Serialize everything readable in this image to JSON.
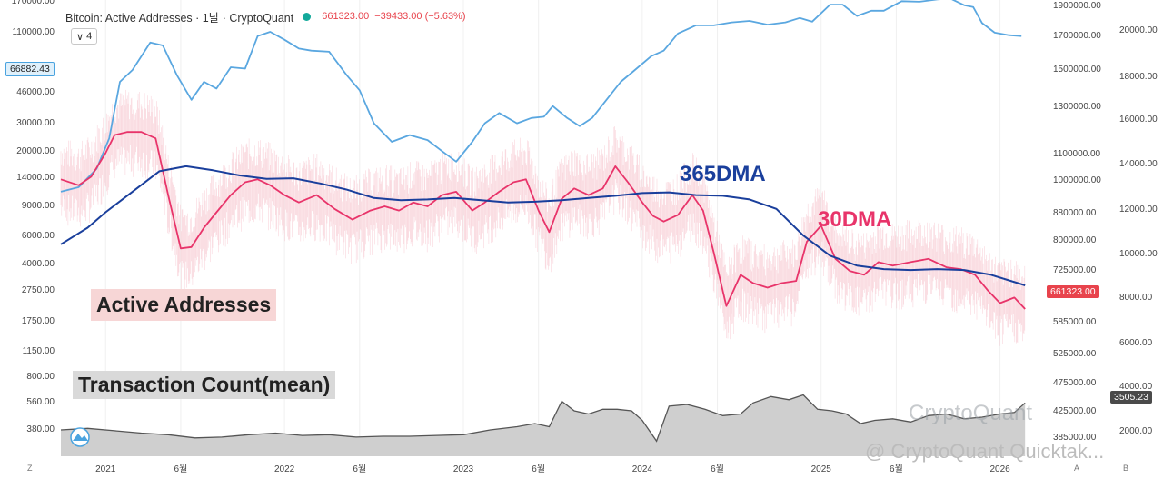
{
  "header": {
    "title": "Bitcoin: Active Addresses · 1날 · CryptoQuant",
    "price": "661323.00",
    "change": "−39433.00 (−5.63%)",
    "indicator_count": "4"
  },
  "badges": {
    "left_axis_current": "66882.43",
    "mid_axis_current": "661323.00",
    "right_axis_current": "3505.23"
  },
  "annotations": {
    "active_addresses": "Active Addresses",
    "transaction_count": "Transaction Count(mean)",
    "ma365": "365DMA",
    "ma30": "30DMA"
  },
  "watermarks": {
    "brand": "CryptoQuant",
    "quicktake": "@ CryptoQuant Quicktak..."
  },
  "corners": {
    "bottom_left": "Z",
    "axis_a": "A",
    "axis_b": "B"
  },
  "chart_data": {
    "type": "line",
    "x_ticks": [
      "2021",
      "6월",
      "2022",
      "6월",
      "2023",
      "6월",
      "2024",
      "6월",
      "2025",
      "6월",
      "2026"
    ],
    "left_axis": {
      "scale": "log",
      "ticks": [
        "170000.00",
        "110000.00",
        "66882.43",
        "46000.00",
        "30000.00",
        "20000.00",
        "14000.00",
        "9000.00",
        "6000.00",
        "4000.00",
        "2750.00",
        "1750.00",
        "1150.00",
        "800.00",
        "560.00",
        "380.00"
      ]
    },
    "mid_axis": {
      "ticks": [
        "1900000.00",
        "1700000.00",
        "1500000.00",
        "1300000.00",
        "1100000.00",
        "1000000.00",
        "880000.00",
        "800000.00",
        "725000.00",
        "661323.00",
        "585000.00",
        "525000.00",
        "475000.00",
        "425000.00",
        "385000.00"
      ]
    },
    "right_axis": {
      "ticks": [
        "20000.00",
        "18000.00",
        "16000.00",
        "14000.00",
        "12000.00",
        "10000.00",
        "8000.00",
        "6000.00",
        "4000.00",
        "2000.00"
      ]
    },
    "series": [
      {
        "name": "",
        "color": "#5aa7e0",
        "axis": "left",
        "x": [
          2020.75,
          2020.85,
          2020.95,
          2021.02,
          2021.08,
          2021.15,
          2021.25,
          2021.32,
          2021.4,
          2021.48,
          2021.55,
          2021.62,
          2021.7,
          2021.78,
          2021.85,
          2021.92,
          2022.0,
          2022.08,
          2022.15,
          2022.25,
          2022.35,
          2022.42,
          2022.5,
          2022.6,
          2022.7,
          2022.8,
          2022.88,
          2022.96,
          2023.05,
          2023.12,
          2023.2,
          2023.3,
          2023.38,
          2023.45,
          2023.5,
          2023.58,
          2023.65,
          2023.72,
          2023.8,
          2023.88,
          2023.95,
          2024.05,
          2024.12,
          2024.2,
          2024.3,
          2024.4,
          2024.5,
          2024.6,
          2024.7,
          2024.8,
          2024.88,
          2024.95,
          2025.05,
          2025.12,
          2025.2,
          2025.28,
          2025.35,
          2025.45,
          2025.55,
          2025.65,
          2025.72,
          2025.8,
          2025.85,
          2025.9,
          2025.97,
          2026.05,
          2026.12
        ],
        "values": [
          11500,
          12200,
          15500,
          23000,
          48000,
          56000,
          80000,
          77000,
          52000,
          38000,
          48000,
          44000,
          58000,
          57000,
          87000,
          92000,
          83000,
          74000,
          72000,
          71000,
          52000,
          43000,
          28000,
          22000,
          24000,
          22500,
          19500,
          17000,
          22000,
          28000,
          32000,
          28000,
          30000,
          30500,
          35000,
          30000,
          27000,
          30000,
          38000,
          48000,
          55000,
          67000,
          72000,
          90000,
          100000,
          100000,
          104000,
          106000,
          101000,
          104000,
          110000,
          105000,
          131000,
          131000,
          113000,
          121000,
          121000,
          137000,
          136000,
          140000,
          142000,
          130000,
          127000,
          103000,
          91000,
          88000,
          87000
        ]
      },
      {
        "name": "30DMA",
        "color": "#e8346a",
        "axis": "left",
        "x": [
          2020.75,
          2020.85,
          2020.92,
          2021.0,
          2021.05,
          2021.12,
          2021.2,
          2021.28,
          2021.35,
          2021.42,
          2021.48,
          2021.55,
          2021.62,
          2021.7,
          2021.78,
          2021.85,
          2021.92,
          2022.0,
          2022.08,
          2022.18,
          2022.28,
          2022.38,
          2022.48,
          2022.56,
          2022.64,
          2022.72,
          2022.8,
          2022.88,
          2022.96,
          2023.05,
          2023.12,
          2023.2,
          2023.28,
          2023.35,
          2023.42,
          2023.48,
          2023.55,
          2023.62,
          2023.7,
          2023.78,
          2023.85,
          2023.92,
          2024.0,
          2024.06,
          2024.12,
          2024.2,
          2024.28,
          2024.34,
          2024.4,
          2024.47,
          2024.55,
          2024.62,
          2024.7,
          2024.78,
          2024.86,
          2024.92,
          2025.0,
          2025.08,
          2025.16,
          2025.24,
          2025.32,
          2025.4,
          2025.5,
          2025.6,
          2025.7,
          2025.78,
          2025.86,
          2025.93,
          2026.0,
          2026.08,
          2026.14
        ],
        "values": [
          13500,
          12500,
          14000,
          19000,
          24000,
          25000,
          25000,
          23000,
          11000,
          5500,
          5600,
          7200,
          8800,
          11000,
          13000,
          13500,
          12500,
          11000,
          10000,
          11000,
          9200,
          8000,
          9000,
          9500,
          9000,
          10000,
          9500,
          11000,
          11500,
          9000,
          10000,
          11500,
          13000,
          13500,
          9000,
          6800,
          10500,
          12000,
          11000,
          12000,
          16000,
          13000,
          10000,
          8400,
          7800,
          8500,
          11000,
          9000,
          5200,
          2600,
          3900,
          3500,
          3300,
          3500,
          3600,
          6000,
          7400,
          4800,
          4100,
          3900,
          4600,
          4400,
          4600,
          4800,
          4300,
          4200,
          3900,
          3200,
          2700,
          2900,
          2500
        ]
      },
      {
        "name": "365DMA",
        "color": "#1a3f9c",
        "axis": "left",
        "x": [
          2020.75,
          2020.9,
          2021.0,
          2021.15,
          2021.3,
          2021.45,
          2021.6,
          2021.75,
          2021.9,
          2022.05,
          2022.2,
          2022.35,
          2022.5,
          2022.65,
          2022.8,
          2022.95,
          2023.1,
          2023.25,
          2023.4,
          2023.55,
          2023.7,
          2023.85,
          2024.0,
          2024.15,
          2024.3,
          2024.45,
          2024.6,
          2024.75,
          2024.9,
          2025.05,
          2025.2,
          2025.35,
          2025.5,
          2025.65,
          2025.8,
          2025.95,
          2026.1,
          2026.14
        ],
        "values": [
          5800,
          7200,
          8800,
          11500,
          15000,
          16000,
          15200,
          14200,
          13600,
          13700,
          12800,
          11800,
          10600,
          10300,
          10400,
          10600,
          10300,
          10000,
          10100,
          10300,
          10600,
          10900,
          11300,
          11400,
          11000,
          10900,
          10400,
          9200,
          6500,
          5000,
          4400,
          4200,
          4150,
          4200,
          4150,
          3900,
          3500,
          3400
        ]
      },
      {
        "name": "",
        "color": "#555555",
        "axis": "right",
        "type": "area",
        "x": [
          2020.75,
          2020.9,
          2021.05,
          2021.2,
          2021.35,
          2021.5,
          2021.65,
          2021.8,
          2021.95,
          2022.1,
          2022.25,
          2022.4,
          2022.55,
          2022.7,
          2022.85,
          2023.0,
          2023.15,
          2023.3,
          2023.4,
          2023.48,
          2023.55,
          2023.62,
          2023.7,
          2023.78,
          2023.86,
          2023.94,
          2024.0,
          2024.08,
          2024.15,
          2024.25,
          2024.35,
          2024.45,
          2024.55,
          2024.62,
          2024.72,
          2024.82,
          2024.9,
          2024.98,
          2025.06,
          2025.14,
          2025.22,
          2025.3,
          2025.4,
          2025.5,
          2025.6,
          2025.7,
          2025.8,
          2025.9,
          2026.0,
          2026.08,
          2026.14
        ],
        "values": [
          2000,
          2100,
          1950,
          1800,
          1700,
          1500,
          1550,
          1700,
          1800,
          1650,
          1700,
          1550,
          1600,
          1600,
          1650,
          1700,
          2000,
          2200,
          2400,
          2200,
          3800,
          3200,
          3000,
          3300,
          3300,
          3200,
          2600,
          1300,
          3500,
          3600,
          3300,
          2900,
          3000,
          3700,
          4100,
          3900,
          4200,
          3300,
          3200,
          3000,
          2400,
          2600,
          2700,
          2500,
          2900,
          3000,
          2700,
          2800,
          3000,
          3100,
          3700
        ]
      }
    ]
  }
}
